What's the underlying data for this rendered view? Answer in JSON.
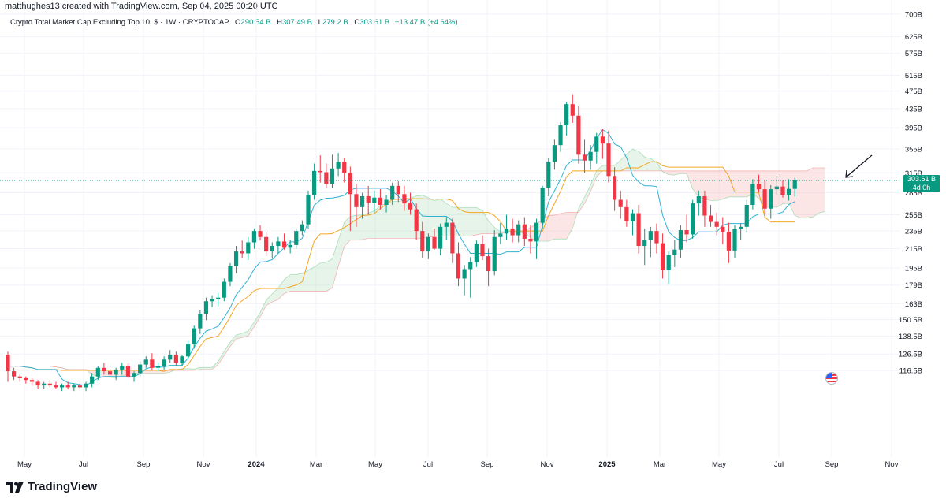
{
  "header": {
    "credit": "matthughes13 created with TradingView.com, Sep 04, 2025 00:20 UTC",
    "symbol": "Crypto Total Market Cap Excluding Top 10, $ · 1W · CRYPTOCAP",
    "open_label": "O",
    "open": "290.54 B",
    "high_label": "H",
    "high": "307.49 B",
    "low_label": "L",
    "low": "279.2 B",
    "close_label": "C",
    "close": "303.61 B",
    "change": "+13.47 B (+4.64%)"
  },
  "price_tag": {
    "price": "303.61 B",
    "countdown": "4d 0h"
  },
  "brand": {
    "name": "TradingView"
  },
  "colors": {
    "up": "#089981",
    "down": "#f23645",
    "conversion": "#2eb2d3",
    "base": "#f5a623",
    "cloud_bull": "#b7e0c4",
    "cloud_bear": "#f7b4b4",
    "arrow": "#131722"
  },
  "chart_data": {
    "type": "candlestick",
    "timeframe": "1W",
    "scale": "log",
    "y_ticks": [
      "700B",
      "625B",
      "575B",
      "515B",
      "475B",
      "435B",
      "395B",
      "355B",
      "315B",
      "285B",
      "255B",
      "235B",
      "215B",
      "195B",
      "179B",
      "163B",
      "150.5B",
      "138.5B",
      "126.5B",
      "116.5B"
    ],
    "x_ticks": [
      {
        "label": "May",
        "major": false
      },
      {
        "label": "Jul",
        "major": false
      },
      {
        "label": "Sep",
        "major": false
      },
      {
        "label": "Nov",
        "major": false
      },
      {
        "label": "2024",
        "major": true
      },
      {
        "label": "Mar",
        "major": false
      },
      {
        "label": "May",
        "major": false
      },
      {
        "label": "Jul",
        "major": false
      },
      {
        "label": "Sep",
        "major": false
      },
      {
        "label": "Nov",
        "major": false
      },
      {
        "label": "2025",
        "major": true
      },
      {
        "label": "Mar",
        "major": false
      },
      {
        "label": "May",
        "major": false
      },
      {
        "label": "Jul",
        "major": false
      },
      {
        "label": "Sep",
        "major": false
      },
      {
        "label": "Nov",
        "major": false
      }
    ],
    "last": {
      "open": 290.54,
      "high": 307.49,
      "low": 279.2,
      "close": 303.61
    },
    "candles": [
      [
        126,
        128,
        110,
        116
      ],
      [
        116,
        118,
        111,
        113
      ],
      [
        113,
        114,
        110,
        112
      ],
      [
        112,
        113,
        109,
        111
      ],
      [
        111,
        112,
        108,
        110
      ],
      [
        110,
        111,
        106,
        108
      ],
      [
        108,
        110,
        106,
        109
      ],
      [
        109,
        111,
        107,
        108
      ],
      [
        108,
        110,
        106,
        107
      ],
      [
        107,
        109,
        105,
        108
      ],
      [
        108,
        110,
        106,
        107
      ],
      [
        107,
        109,
        105,
        108
      ],
      [
        108,
        110,
        106,
        107
      ],
      [
        107,
        110,
        105,
        109
      ],
      [
        109,
        115,
        107,
        113
      ],
      [
        113,
        119,
        111,
        118
      ],
      [
        118,
        121,
        114,
        116
      ],
      [
        116,
        119,
        113,
        114
      ],
      [
        114,
        118,
        111,
        117
      ],
      [
        117,
        121,
        114,
        119
      ],
      [
        119,
        121,
        112,
        113
      ],
      [
        113,
        116,
        110,
        115
      ],
      [
        115,
        122,
        113,
        120
      ],
      [
        120,
        125,
        118,
        123
      ],
      [
        123,
        127,
        117,
        118
      ],
      [
        118,
        121,
        116,
        119
      ],
      [
        119,
        125,
        117,
        123
      ],
      [
        123,
        129,
        121,
        126
      ],
      [
        126,
        128,
        119,
        121
      ],
      [
        121,
        126,
        119,
        125
      ],
      [
        125,
        135,
        123,
        133
      ],
      [
        133,
        146,
        130,
        144
      ],
      [
        144,
        158,
        140,
        155
      ],
      [
        155,
        168,
        150,
        165
      ],
      [
        165,
        170,
        160,
        167
      ],
      [
        167,
        172,
        161,
        168
      ],
      [
        168,
        185,
        165,
        182
      ],
      [
        182,
        200,
        178,
        197
      ],
      [
        197,
        218,
        190,
        212
      ],
      [
        212,
        224,
        205,
        210
      ],
      [
        210,
        228,
        203,
        222
      ],
      [
        222,
        238,
        215,
        235
      ],
      [
        235,
        242,
        224,
        228
      ],
      [
        228,
        234,
        207,
        212
      ],
      [
        212,
        222,
        205,
        218
      ],
      [
        218,
        228,
        210,
        223
      ],
      [
        223,
        232,
        214,
        216
      ],
      [
        216,
        225,
        210,
        219
      ],
      [
        219,
        238,
        215,
        235
      ],
      [
        235,
        248,
        230,
        243
      ],
      [
        243,
        288,
        238,
        282
      ],
      [
        282,
        330,
        275,
        318
      ],
      [
        318,
        344,
        300,
        316
      ],
      [
        316,
        330,
        292,
        298
      ],
      [
        298,
        345,
        292,
        322
      ],
      [
        322,
        348,
        310,
        333
      ],
      [
        333,
        340,
        300,
        315
      ],
      [
        315,
        325,
        235,
        283
      ],
      [
        283,
        298,
        240,
        265
      ],
      [
        265,
        285,
        250,
        280
      ],
      [
        280,
        295,
        255,
        271
      ],
      [
        271,
        288,
        258,
        278
      ],
      [
        278,
        290,
        262,
        268
      ],
      [
        268,
        282,
        258,
        275
      ],
      [
        275,
        300,
        268,
        295
      ],
      [
        295,
        302,
        272,
        283
      ],
      [
        283,
        295,
        260,
        270
      ],
      [
        270,
        285,
        255,
        262
      ],
      [
        262,
        270,
        225,
        235
      ],
      [
        235,
        246,
        205,
        212
      ],
      [
        212,
        232,
        204,
        228
      ],
      [
        228,
        238,
        214,
        215
      ],
      [
        215,
        244,
        208,
        240
      ],
      [
        240,
        252,
        225,
        245
      ],
      [
        245,
        250,
        200,
        210
      ],
      [
        210,
        222,
        178,
        185
      ],
      [
        185,
        198,
        170,
        194
      ],
      [
        194,
        206,
        168,
        201
      ],
      [
        201,
        224,
        196,
        220
      ],
      [
        220,
        230,
        203,
        207
      ],
      [
        207,
        215,
        178,
        192
      ],
      [
        192,
        236,
        188,
        228
      ],
      [
        228,
        245,
        220,
        232
      ],
      [
        232,
        255,
        225,
        238
      ],
      [
        238,
        250,
        222,
        230
      ],
      [
        230,
        248,
        222,
        243
      ],
      [
        243,
        252,
        218,
        226
      ],
      [
        226,
        242,
        210,
        223
      ],
      [
        223,
        250,
        204,
        245
      ],
      [
        245,
        295,
        238,
        292
      ],
      [
        292,
        340,
        280,
        333
      ],
      [
        333,
        372,
        320,
        362
      ],
      [
        362,
        406,
        350,
        400
      ],
      [
        400,
        450,
        380,
        445
      ],
      [
        445,
        468,
        405,
        420
      ],
      [
        420,
        440,
        330,
        345
      ],
      [
        345,
        372,
        315,
        335
      ],
      [
        335,
        362,
        320,
        350
      ],
      [
        350,
        385,
        330,
        378
      ],
      [
        378,
        392,
        338,
        365
      ],
      [
        365,
        390,
        300,
        310
      ],
      [
        310,
        324,
        260,
        275
      ],
      [
        275,
        288,
        250,
        265
      ],
      [
        265,
        275,
        240,
        247
      ],
      [
        247,
        262,
        230,
        257
      ],
      [
        257,
        268,
        210,
        218
      ],
      [
        218,
        238,
        198,
        225
      ],
      [
        225,
        240,
        206,
        235
      ],
      [
        235,
        244,
        210,
        221
      ],
      [
        221,
        232,
        185,
        193
      ],
      [
        193,
        212,
        180,
        208
      ],
      [
        208,
        225,
        196,
        214
      ],
      [
        214,
        242,
        205,
        236
      ],
      [
        236,
        255,
        222,
        231
      ],
      [
        231,
        275,
        226,
        270
      ],
      [
        270,
        288,
        254,
        280
      ],
      [
        280,
        288,
        240,
        254
      ],
      [
        254,
        268,
        240,
        246
      ],
      [
        246,
        258,
        230,
        240
      ],
      [
        240,
        252,
        220,
        234
      ],
      [
        234,
        245,
        200,
        213
      ],
      [
        213,
        242,
        205,
        237
      ],
      [
        237,
        244,
        225,
        240
      ],
      [
        240,
        275,
        233,
        268
      ],
      [
        268,
        305,
        262,
        298
      ],
      [
        298,
        312,
        286,
        290
      ],
      [
        290,
        302,
        255,
        263
      ],
      [
        263,
        296,
        250,
        290
      ],
      [
        290,
        310,
        281,
        294
      ],
      [
        294,
        303,
        278,
        282
      ],
      [
        282,
        305,
        274,
        290.54
      ],
      [
        290.54,
        307.49,
        279.2,
        303.61
      ]
    ]
  }
}
